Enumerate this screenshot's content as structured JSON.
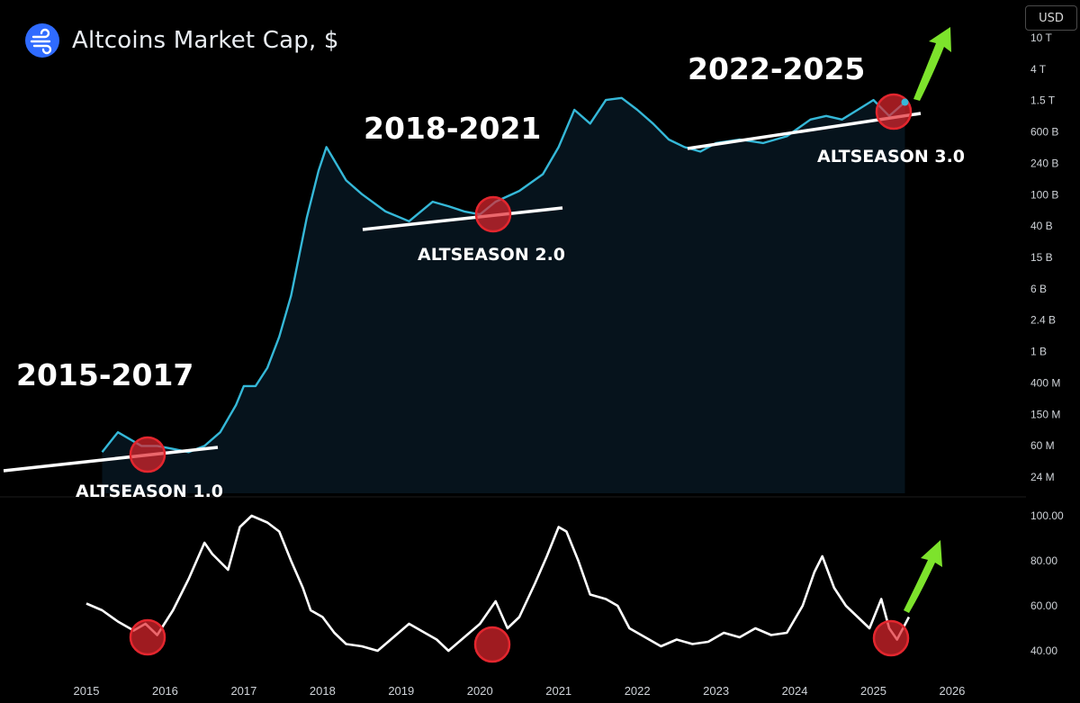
{
  "header": {
    "title": "Altcoins Market Cap, $",
    "logo_icon": "wind-icon",
    "currency_button": "USD"
  },
  "colors": {
    "main_line": "#35b8d8",
    "index_line": "#ffffff",
    "support": "#ffffff",
    "circle": "#e3262e",
    "arrow": "#7de32c"
  },
  "chart_data": [
    {
      "type": "line",
      "title": "Altcoins Market Cap, $",
      "y_scale": "log",
      "y_ticks": [
        "10 T",
        "4 T",
        "1.5 T",
        "600 B",
        "240 B",
        "100 B",
        "40 B",
        "15 B",
        "6 B",
        "2.4 B",
        "1 B",
        "400 M",
        "150 M",
        "60 M",
        "24 M"
      ],
      "x": [
        2015.2,
        2015.4,
        2015.7,
        2015.9,
        2016.1,
        2016.3,
        2016.5,
        2016.7,
        2016.9,
        2017.0,
        2017.15,
        2017.3,
        2017.45,
        2017.6,
        2017.8,
        2017.95,
        2018.05,
        2018.3,
        2018.5,
        2018.8,
        2019.1,
        2019.4,
        2019.6,
        2019.8,
        2020.0,
        2020.2,
        2020.5,
        2020.8,
        2021.0,
        2021.2,
        2021.4,
        2021.6,
        2021.8,
        2022.0,
        2022.2,
        2022.4,
        2022.6,
        2022.8,
        2023.0,
        2023.3,
        2023.6,
        2023.9,
        2024.2,
        2024.4,
        2024.6,
        2024.8,
        2025.0,
        2025.2,
        2025.4
      ],
      "values": [
        0.05,
        0.09,
        0.06,
        0.06,
        0.055,
        0.05,
        0.06,
        0.09,
        0.2,
        0.35,
        0.35,
        0.6,
        1.5,
        5,
        50,
        200,
        400,
        150,
        100,
        60,
        45,
        80,
        70,
        60,
        55,
        80,
        110,
        180,
        400,
        1200,
        800,
        1600,
        1700,
        1200,
        800,
        500,
        400,
        350,
        450,
        500,
        450,
        550,
        900,
        1000,
        900,
        1200,
        1600,
        1000,
        1500
      ],
      "annotations": [
        "2015-2017",
        "ALTSEASON 1.0",
        "2018-2021",
        "ALTSEASON 2.0",
        "2022-2025",
        "ALTSEASON 3.0"
      ]
    },
    {
      "type": "line",
      "y_ticks": [
        "100.00",
        "80.00",
        "60.00",
        "40.00"
      ],
      "ylim": [
        36,
        100
      ],
      "x_ticks": [
        "2015",
        "2016",
        "2017",
        "2018",
        "2019",
        "2020",
        "2021",
        "2022",
        "2023",
        "2024",
        "2025",
        "2026"
      ],
      "x": [
        2015.0,
        2015.2,
        2015.4,
        2015.6,
        2015.75,
        2015.9,
        2016.1,
        2016.3,
        2016.5,
        2016.6,
        2016.8,
        2016.95,
        2017.1,
        2017.3,
        2017.45,
        2017.6,
        2017.75,
        2017.85,
        2018.0,
        2018.15,
        2018.3,
        2018.5,
        2018.7,
        2018.9,
        2019.1,
        2019.3,
        2019.45,
        2019.6,
        2019.8,
        2020.0,
        2020.2,
        2020.35,
        2020.5,
        2020.7,
        2020.85,
        2021.0,
        2021.1,
        2021.25,
        2021.4,
        2021.6,
        2021.75,
        2021.9,
        2022.1,
        2022.3,
        2022.5,
        2022.7,
        2022.9,
        2023.1,
        2023.3,
        2023.5,
        2023.7,
        2023.9,
        2024.1,
        2024.25,
        2024.35,
        2024.5,
        2024.65,
        2024.8,
        2024.95,
        2025.1,
        2025.2,
        2025.3,
        2025.45
      ],
      "values": [
        61,
        58,
        53,
        49,
        52,
        47,
        58,
        72,
        88,
        83,
        76,
        95,
        100,
        97,
        93,
        80,
        68,
        58,
        55,
        48,
        43,
        42,
        40,
        46,
        52,
        48,
        45,
        40,
        46,
        52,
        62,
        50,
        55,
        70,
        82,
        95,
        93,
        80,
        65,
        63,
        60,
        50,
        46,
        42,
        45,
        43,
        44,
        48,
        46,
        50,
        47,
        48,
        60,
        75,
        82,
        68,
        60,
        55,
        50,
        63,
        50,
        45,
        55
      ]
    }
  ]
}
